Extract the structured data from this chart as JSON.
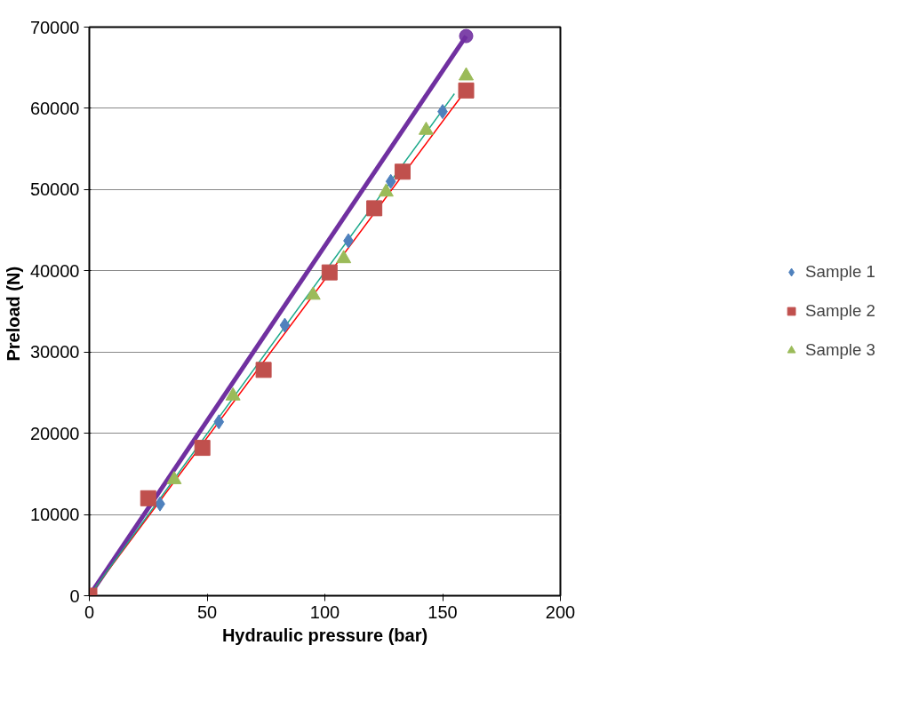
{
  "chart_data": {
    "type": "scatter",
    "xlabel": "Hydraulic pressure (bar)",
    "ylabel": "Preload  (N)",
    "xlim": [
      0,
      200
    ],
    "ylim": [
      0,
      70000
    ],
    "xticks": [
      0,
      50,
      100,
      150,
      200
    ],
    "yticks": [
      0,
      10000,
      20000,
      30000,
      40000,
      50000,
      60000,
      70000
    ],
    "grid": "y",
    "legend": "right",
    "series": [
      {
        "type": "line",
        "color": "#7030a0",
        "marker": "circle",
        "x": [
          0,
          160
        ],
        "values": [
          0,
          68900
        ]
      },
      {
        "type": "line",
        "color": "#ff0000",
        "marker": "none",
        "x": [
          0,
          158
        ],
        "values": [
          0,
          61500
        ]
      },
      {
        "type": "line",
        "color": "#1aa88a",
        "marker": "none",
        "x": [
          0,
          155
        ],
        "values": [
          0,
          61800
        ]
      },
      {
        "name": "Sample 1",
        "color": "#4f81bd",
        "marker": "diamond",
        "x": [
          30,
          55,
          83,
          110,
          128,
          150
        ],
        "values": [
          11300,
          21400,
          33300,
          43700,
          51000,
          59600
        ]
      },
      {
        "name": "Sample 3",
        "color": "#9bbb59",
        "marker": "triangle",
        "x": [
          36,
          61,
          95,
          108,
          126,
          143,
          160
        ],
        "values": [
          14300,
          24600,
          37000,
          41500,
          49700,
          57300,
          64000
        ]
      },
      {
        "name": "Sample 2",
        "color": "#c0504d",
        "marker": "square",
        "x": [
          0,
          25,
          48,
          74,
          102,
          121,
          133,
          160
        ],
        "values": [
          0,
          12000,
          18200,
          27800,
          39800,
          47700,
          52200,
          62200
        ]
      }
    ]
  }
}
